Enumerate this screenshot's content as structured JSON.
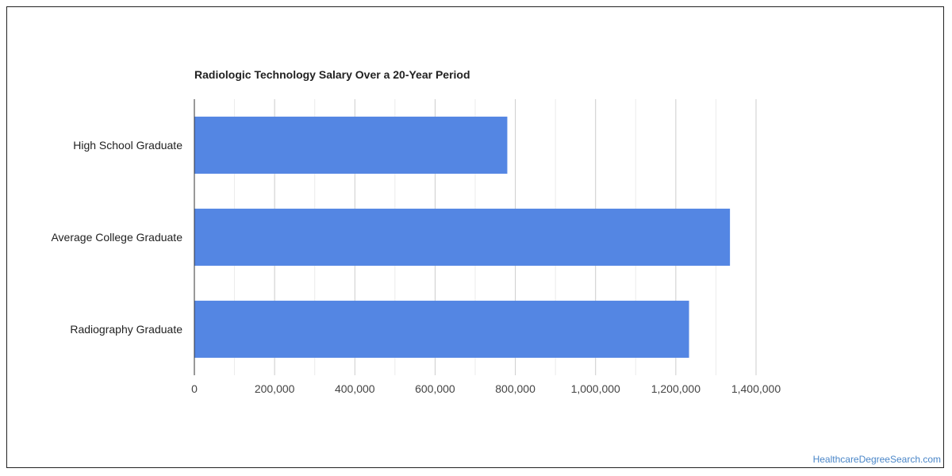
{
  "chart_data": {
    "type": "bar",
    "orientation": "horizontal",
    "title": "Radiologic Technology Salary Over a 20-Year Period",
    "categories": [
      "High School Graduate",
      "Average College Graduate",
      "Radiography Graduate"
    ],
    "values": [
      780000,
      1335000,
      1233000
    ],
    "xlabel": "",
    "ylabel": "",
    "xlim": [
      0,
      1400000
    ],
    "x_ticks": [
      0,
      200000,
      400000,
      600000,
      800000,
      1000000,
      1200000,
      1400000
    ],
    "x_tick_labels": [
      "0",
      "200,000",
      "400,000",
      "600,000",
      "800,000",
      "1,000,000",
      "1,200,000",
      "1,400,000"
    ],
    "grid": true,
    "bar_color": "#5486e3"
  },
  "watermark": "HealthcareDegreeSearch.com"
}
